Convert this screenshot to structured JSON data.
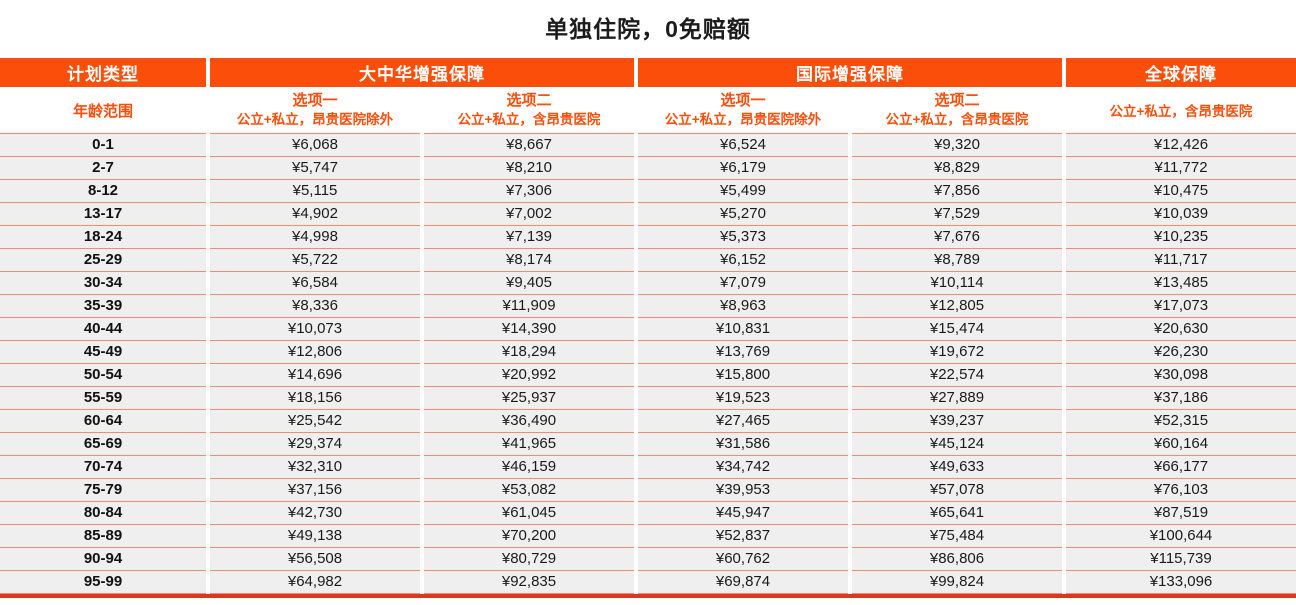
{
  "title": "单独住院，0免赔额",
  "colors": {
    "accent_orange": "#fb4e0b",
    "header_text": "#ffffff",
    "row_background": "#efefef",
    "row_divider": "#ef8b76",
    "bottom_rule": "#d93920",
    "title_text": "#1c1c1c"
  },
  "table": {
    "group_headers": [
      {
        "label": "计划类型"
      },
      {
        "label": "大中华增强保障"
      },
      {
        "label": "国际增强保障"
      },
      {
        "label": "全球保障"
      }
    ],
    "sub_headers": {
      "age_label": "年龄范围",
      "option1_title": "选项一",
      "option1_sub": "公立+私立，昂贵医院除外",
      "option2_title": "选项二",
      "option2_sub": "公立+私立，含昂贵医院",
      "global_sub": "公立+私立，含昂贵医院"
    },
    "rows": [
      {
        "age": "0-1",
        "values": [
          "¥6,068",
          "¥8,667",
          "¥6,524",
          "¥9,320",
          "¥12,426"
        ]
      },
      {
        "age": "2-7",
        "values": [
          "¥5,747",
          "¥8,210",
          "¥6,179",
          "¥8,829",
          "¥11,772"
        ]
      },
      {
        "age": "8-12",
        "values": [
          "¥5,115",
          "¥7,306",
          "¥5,499",
          "¥7,856",
          "¥10,475"
        ]
      },
      {
        "age": "13-17",
        "values": [
          "¥4,902",
          "¥7,002",
          "¥5,270",
          "¥7,529",
          "¥10,039"
        ]
      },
      {
        "age": "18-24",
        "values": [
          "¥4,998",
          "¥7,139",
          "¥5,373",
          "¥7,676",
          "¥10,235"
        ]
      },
      {
        "age": "25-29",
        "values": [
          "¥5,722",
          "¥8,174",
          "¥6,152",
          "¥8,789",
          "¥11,717"
        ]
      },
      {
        "age": "30-34",
        "values": [
          "¥6,584",
          "¥9,405",
          "¥7,079",
          "¥10,114",
          "¥13,485"
        ]
      },
      {
        "age": "35-39",
        "values": [
          "¥8,336",
          "¥11,909",
          "¥8,963",
          "¥12,805",
          "¥17,073"
        ]
      },
      {
        "age": "40-44",
        "values": [
          "¥10,073",
          "¥14,390",
          "¥10,831",
          "¥15,474",
          "¥20,630"
        ]
      },
      {
        "age": "45-49",
        "values": [
          "¥12,806",
          "¥18,294",
          "¥13,769",
          "¥19,672",
          "¥26,230"
        ]
      },
      {
        "age": "50-54",
        "values": [
          "¥14,696",
          "¥20,992",
          "¥15,800",
          "¥22,574",
          "¥30,098"
        ]
      },
      {
        "age": "55-59",
        "values": [
          "¥18,156",
          "¥25,937",
          "¥19,523",
          "¥27,889",
          "¥37,186"
        ]
      },
      {
        "age": "60-64",
        "values": [
          "¥25,542",
          "¥36,490",
          "¥27,465",
          "¥39,237",
          "¥52,315"
        ]
      },
      {
        "age": "65-69",
        "values": [
          "¥29,374",
          "¥41,965",
          "¥31,586",
          "¥45,124",
          "¥60,164"
        ]
      },
      {
        "age": "70-74",
        "values": [
          "¥32,310",
          "¥46,159",
          "¥34,742",
          "¥49,633",
          "¥66,177"
        ]
      },
      {
        "age": "75-79",
        "values": [
          "¥37,156",
          "¥53,082",
          "¥39,953",
          "¥57,078",
          "¥76,103"
        ]
      },
      {
        "age": "80-84",
        "values": [
          "¥42,730",
          "¥61,045",
          "¥45,947",
          "¥65,641",
          "¥87,519"
        ]
      },
      {
        "age": "85-89",
        "values": [
          "¥49,138",
          "¥70,200",
          "¥52,837",
          "¥75,484",
          "¥100,644"
        ]
      },
      {
        "age": "90-94",
        "values": [
          "¥56,508",
          "¥80,729",
          "¥60,762",
          "¥86,806",
          "¥115,739"
        ]
      },
      {
        "age": "95-99",
        "values": [
          "¥64,982",
          "¥92,835",
          "¥69,874",
          "¥99,824",
          "¥133,096"
        ]
      }
    ]
  }
}
